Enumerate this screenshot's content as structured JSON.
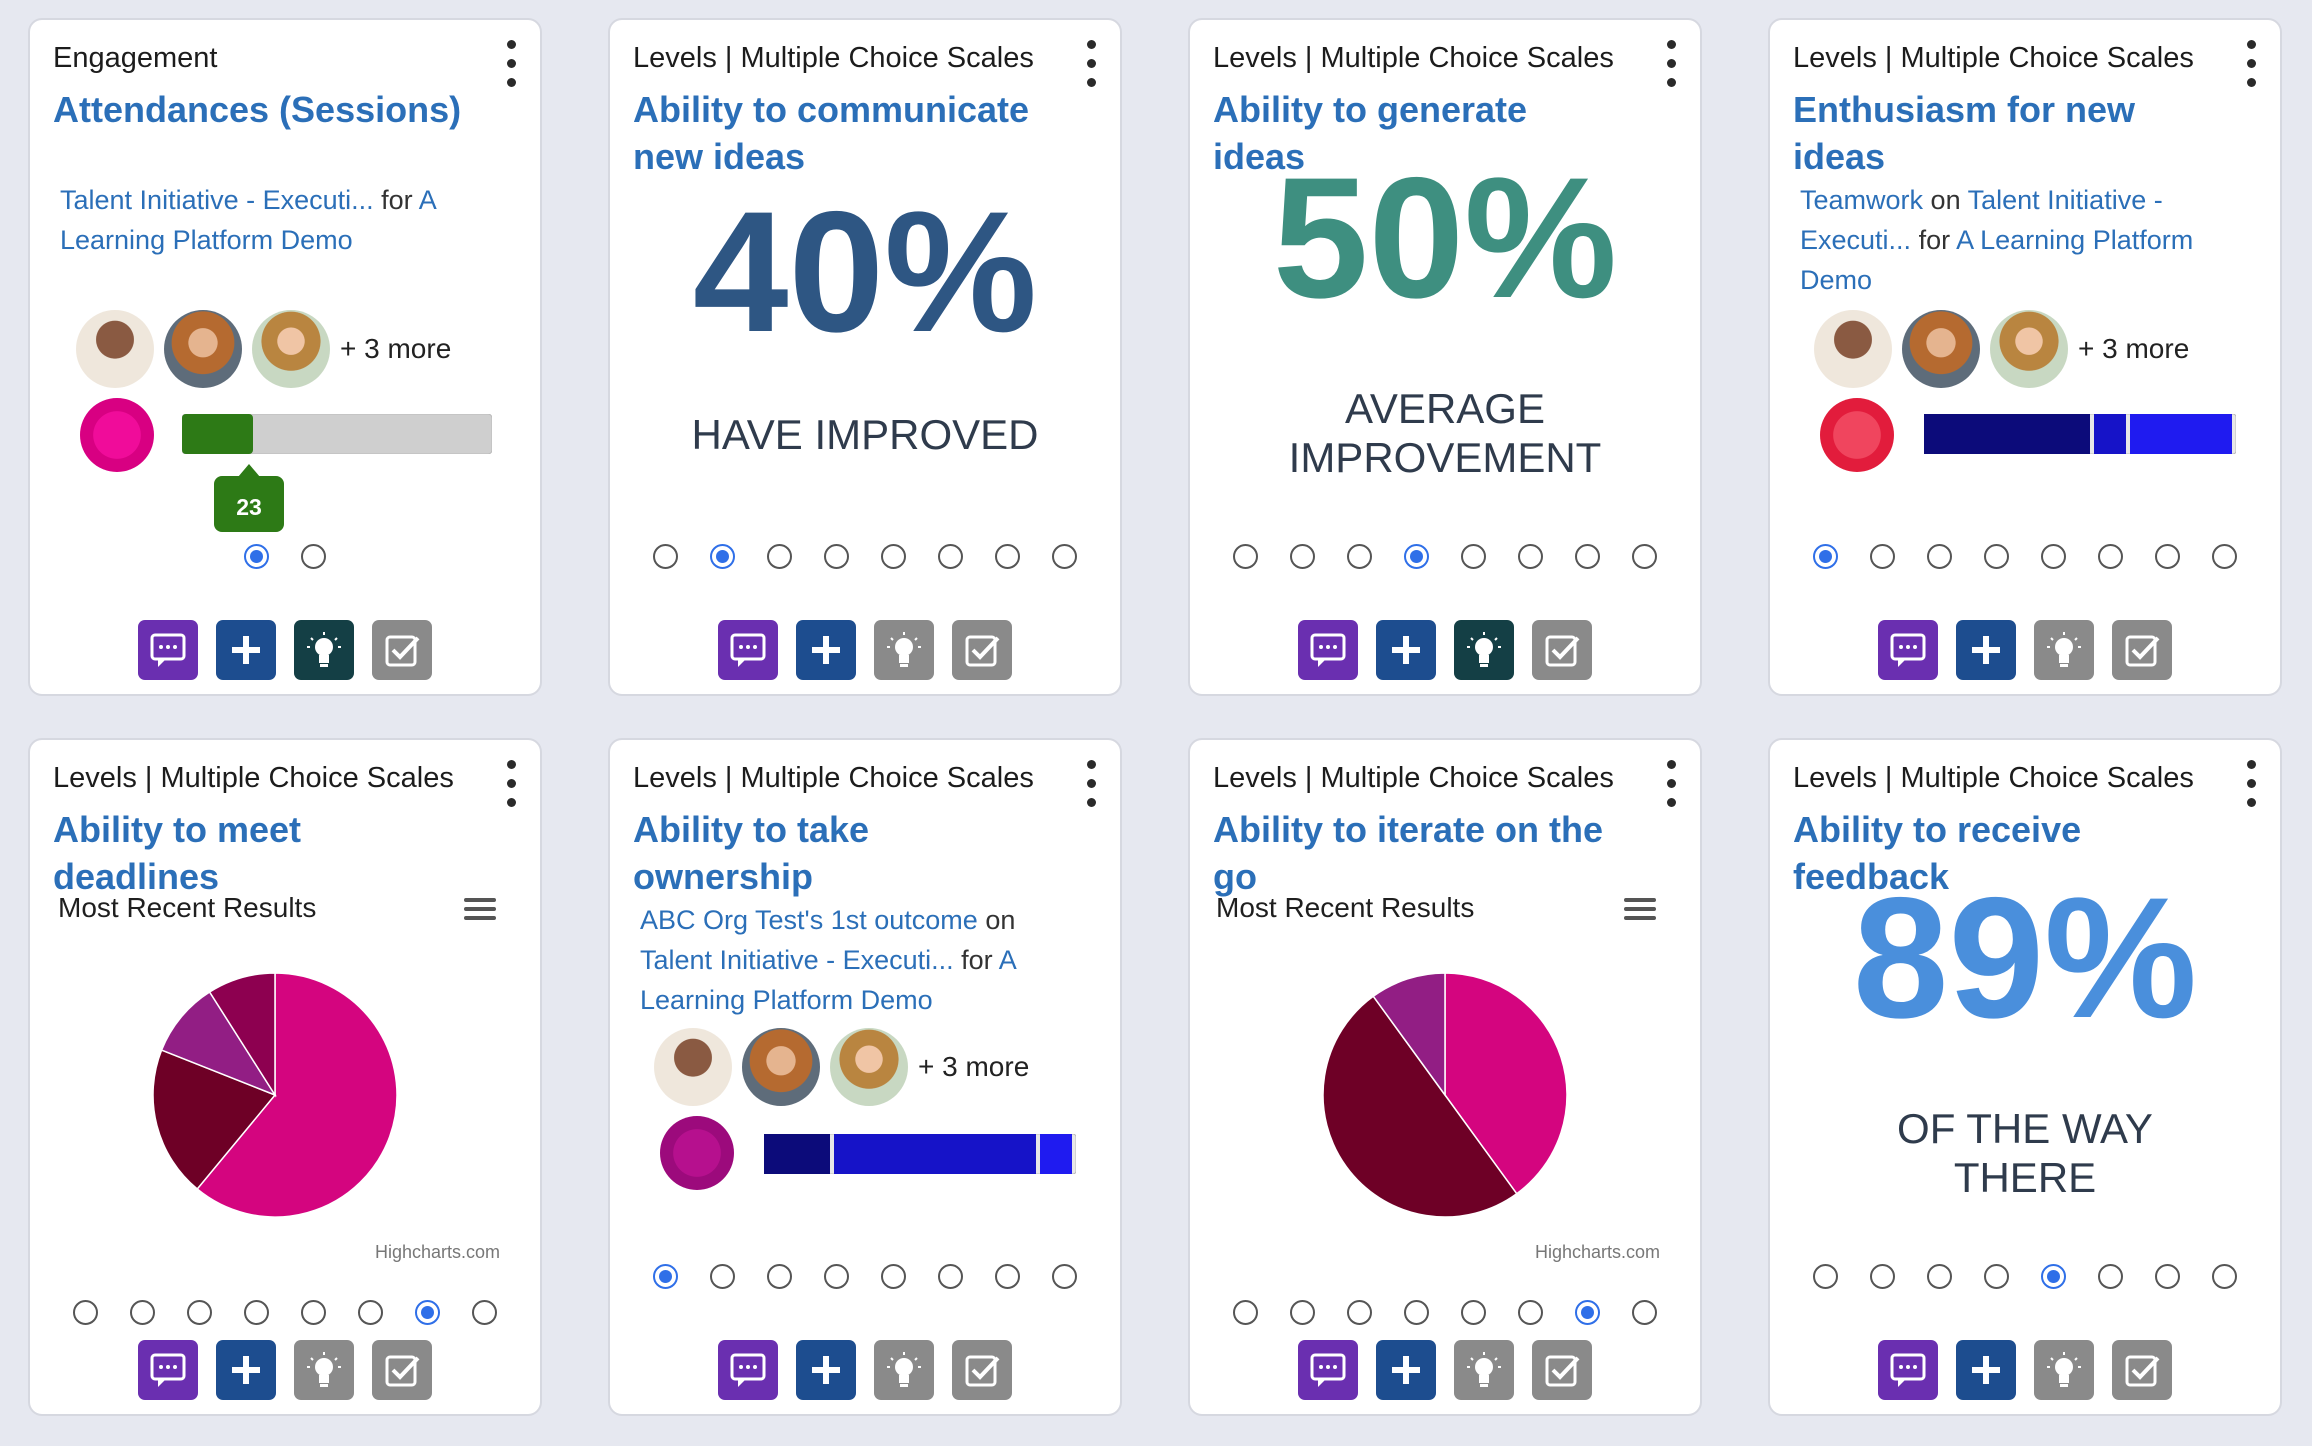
{
  "cards": [
    {
      "category": "Engagement",
      "title": "Attendances (Sessions)",
      "source": {
        "program": "Talent Initiative - Executi...",
        "for_word": "for",
        "org": "A Learning Platform Demo"
      },
      "participants": {
        "more_label": "+ 3 more"
      },
      "progress": {
        "value_label": "23",
        "fraction": 0.23
      },
      "pagination": {
        "count": 2,
        "active": 1
      },
      "actions": [
        "comment-icon",
        "plus-icon",
        "lightbulb-icon",
        "checkbox-icon"
      ]
    },
    {
      "category": "Levels | Multiple Choice Scales",
      "title": "Ability to communicate new ideas",
      "stat": {
        "value": "40%",
        "label": "HAVE IMPROVED",
        "color": "#2e5683"
      },
      "pagination": {
        "count": 8,
        "active": 2
      }
    },
    {
      "category": "Levels | Multiple Choice Scales",
      "title": "Ability to generate ideas",
      "stat": {
        "value": "50%",
        "label_line1": "AVERAGE",
        "label_line2": "IMPROVEMENT",
        "color": "#3e8f80"
      },
      "pagination": {
        "count": 8,
        "active": 4
      }
    },
    {
      "category": "Levels | Multiple Choice Scales",
      "title": "Enthusiasm for new ideas",
      "source": {
        "topic": "Teamwork",
        "on_word": "on",
        "program": "Talent Initiative - Executi...",
        "for_word": "for",
        "org": "A Learning Platform Demo"
      },
      "participants": {
        "more_label": "+ 3 more"
      },
      "pagination": {
        "count": 8,
        "active": 1
      }
    },
    {
      "category": "Levels | Multiple Choice Scales",
      "title": "Ability to meet deadlines",
      "chart_label": "Most Recent Results",
      "credit": "Highcharts.com",
      "pagination": {
        "count": 8,
        "active": 7
      }
    },
    {
      "category": "Levels | Multiple Choice Scales",
      "title": "Ability to take ownership",
      "source": {
        "outcome": "ABC Org Test's 1st outcome",
        "on_word": "on",
        "program": "Talent Initiative - Executi...",
        "for_word": "for",
        "org": "A Learning Platform Demo"
      },
      "participants": {
        "more_label": "+ 3 more"
      },
      "pagination": {
        "count": 8,
        "active": 1
      }
    },
    {
      "category": "Levels | Multiple Choice Scales",
      "title": "Ability to iterate on the go",
      "chart_label": "Most Recent Results",
      "credit": "Highcharts.com",
      "pagination": {
        "count": 8,
        "active": 7
      }
    },
    {
      "category": "Levels | Multiple Choice Scales",
      "title": "Ability to receive feedback",
      "stat": {
        "value": "89%",
        "label_line1": "OF THE WAY",
        "label_line2": "THERE",
        "color": "#4a8fdc"
      },
      "pagination": {
        "count": 8,
        "active": 5
      }
    }
  ],
  "chart_data": [
    {
      "type": "pie",
      "title": "Most Recent Results",
      "slices": [
        {
          "value": 61,
          "color": "#d4057f"
        },
        {
          "value": 20,
          "color": "#6e0026"
        },
        {
          "value": 10,
          "color": "#921e84"
        },
        {
          "value": 9,
          "color": "#8d0050"
        }
      ]
    },
    {
      "type": "pie",
      "title": "Most Recent Results",
      "slices": [
        {
          "value": 40,
          "color": "#d4057f"
        },
        {
          "value": 50,
          "color": "#6e0026"
        },
        {
          "value": 10,
          "color": "#921e84"
        }
      ]
    }
  ]
}
